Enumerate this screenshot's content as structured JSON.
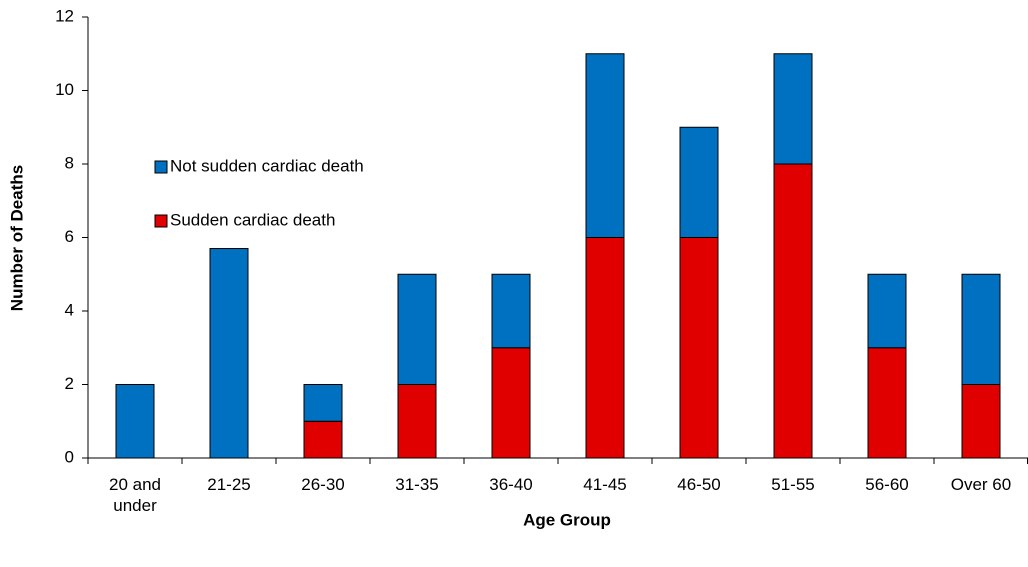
{
  "chart_data": {
    "type": "stacked_bar",
    "x_label": "Age Group",
    "y_label": "Number of Deaths",
    "categories": [
      "20 and under",
      "21-25",
      "26-30",
      "31-35",
      "36-40",
      "41-45",
      "46-50",
      "51-55",
      "56-60",
      "Over 60"
    ],
    "series": [
      {
        "name": "Sudden cardiac death",
        "color": "#e00000",
        "values": [
          0,
          0,
          1,
          2,
          3,
          6,
          6,
          8,
          3,
          2
        ]
      },
      {
        "name": "Not sudden cardiac death",
        "color": "#0070c0",
        "values": [
          2,
          5.7,
          1,
          3,
          2,
          5,
          3,
          3,
          2,
          3
        ]
      }
    ],
    "ylim": [
      0,
      12
    ],
    "yticks": [
      0,
      2,
      4,
      6,
      8,
      10,
      12
    ],
    "grid": false,
    "legend": "left"
  }
}
